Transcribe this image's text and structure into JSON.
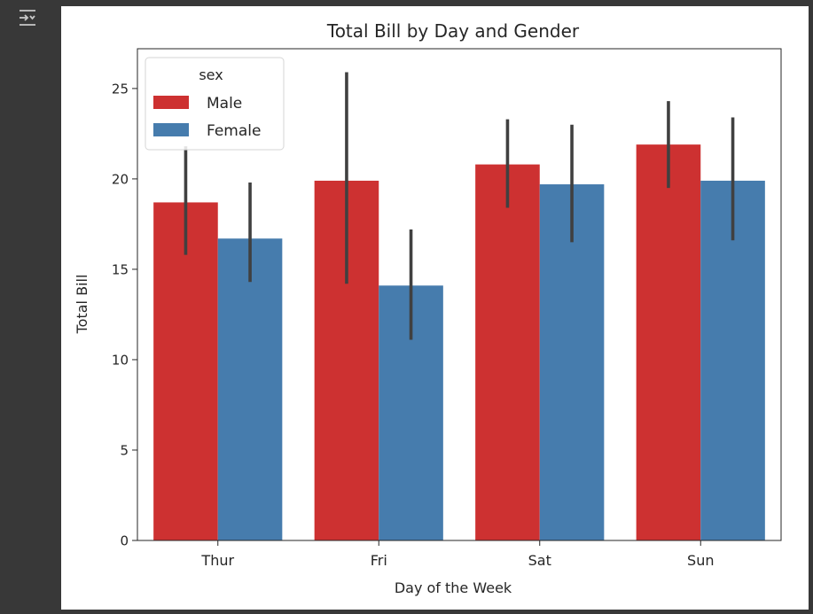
{
  "chart_data": {
    "type": "bar",
    "title": "Total Bill by Day and Gender",
    "xlabel": "Day of the Week",
    "ylabel": "Total Bill",
    "categories": [
      "Thur",
      "Fri",
      "Sat",
      "Sun"
    ],
    "ylim": [
      0,
      27.2
    ],
    "yticks": [
      0,
      5,
      10,
      15,
      20,
      25
    ],
    "grid": false,
    "legend": {
      "title": "sex",
      "placement": "top-left"
    },
    "series": [
      {
        "name": "Male",
        "color": "#cd3131",
        "values": [
          18.7,
          19.9,
          20.8,
          21.9
        ],
        "ci_low": [
          15.8,
          14.2,
          18.4,
          19.5
        ],
        "ci_high": [
          21.8,
          25.9,
          23.3,
          24.3
        ]
      },
      {
        "name": "Female",
        "color": "#467cad",
        "values": [
          16.7,
          14.1,
          19.7,
          19.9
        ],
        "ci_low": [
          14.3,
          11.1,
          16.5,
          16.6
        ],
        "ci_high": [
          19.8,
          17.2,
          23.0,
          23.4
        ]
      }
    ]
  },
  "toolbar": {
    "output_toggle_icon": "output-collapse-icon"
  }
}
